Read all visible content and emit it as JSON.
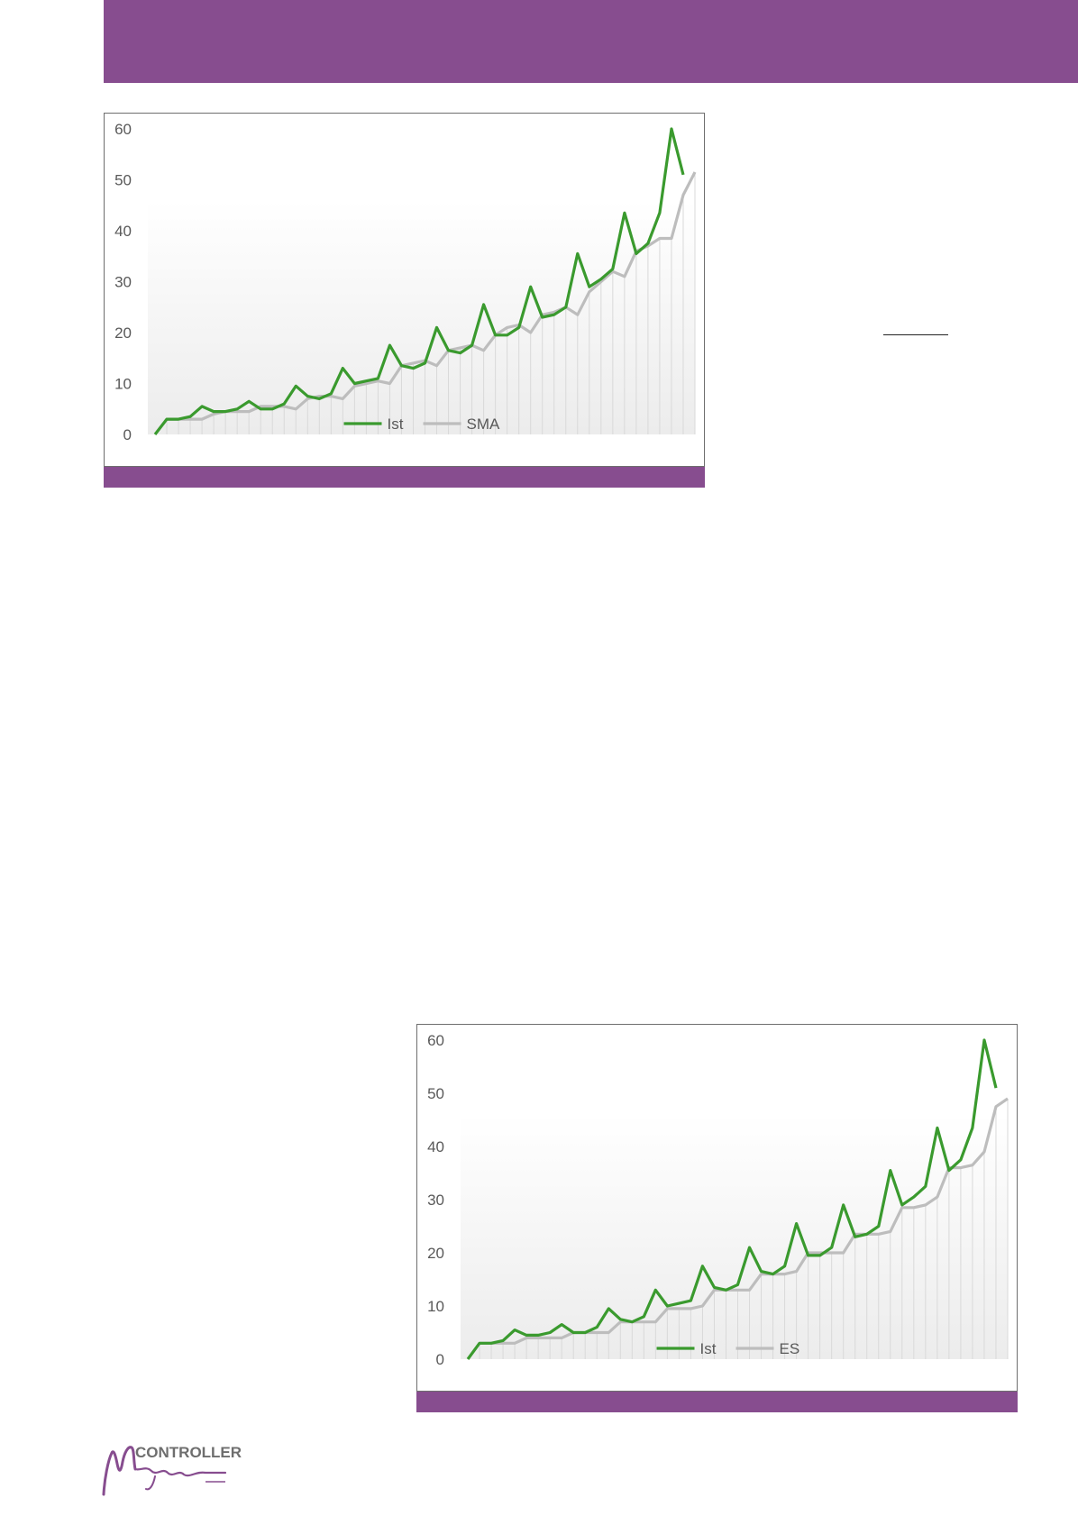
{
  "colors": {
    "header": "#874d8f",
    "ist": "#3a9a2e",
    "average": "#bdbdbd",
    "gridline": "#d9d9d9",
    "tick_text": "#595959"
  },
  "chart_data": [
    {
      "type": "line",
      "ylim": [
        0,
        60
      ],
      "yticks": [
        "0",
        "10",
        "20",
        "30",
        "40",
        "50",
        "60"
      ],
      "legend_position": "bottom-center",
      "series": [
        {
          "name": "Ist",
          "values": [
            0,
            3,
            3,
            3.5,
            5.5,
            4.5,
            4.5,
            5,
            6.5,
            5,
            5,
            6,
            9.5,
            7.5,
            7,
            8,
            13,
            10,
            10.5,
            11,
            17.5,
            13.5,
            13,
            14,
            21,
            16.5,
            16,
            17.5,
            25.5,
            19.5,
            19.5,
            21,
            29,
            23,
            23.5,
            25,
            35.5,
            29,
            30.5,
            32.5,
            43.5,
            35.5,
            37.5,
            43.5,
            60,
            51
          ]
        },
        {
          "name": "SMA",
          "values": [
            null,
            3,
            3,
            3,
            3,
            4,
            4.5,
            4.5,
            4.5,
            5.5,
            5.5,
            5.5,
            5,
            7,
            7.5,
            7.5,
            7,
            9.5,
            10,
            10.5,
            10,
            13.5,
            14,
            14.5,
            13.5,
            16.5,
            17,
            17.5,
            16.5,
            19.5,
            21,
            21.5,
            20,
            23.5,
            24,
            25,
            23.5,
            28,
            30,
            32,
            31,
            36,
            37,
            38.5,
            38.5,
            47,
            51.5
          ]
        }
      ]
    },
    {
      "type": "line",
      "ylim": [
        0,
        60
      ],
      "yticks": [
        "0",
        "10",
        "20",
        "30",
        "40",
        "50",
        "60"
      ],
      "legend_position": "bottom-center",
      "series": [
        {
          "name": "Ist",
          "values": [
            0,
            3,
            3,
            3.5,
            5.5,
            4.5,
            4.5,
            5,
            6.5,
            5,
            5,
            6,
            9.5,
            7.5,
            7,
            8,
            13,
            10,
            10.5,
            11,
            17.5,
            13.5,
            13,
            14,
            21,
            16.5,
            16,
            17.5,
            25.5,
            19.5,
            19.5,
            21,
            29,
            23,
            23.5,
            25,
            35.5,
            29,
            30.5,
            32.5,
            43.5,
            35.5,
            37.5,
            43.5,
            60,
            51
          ]
        },
        {
          "name": "ES",
          "values": [
            null,
            3,
            3,
            3,
            3,
            4,
            4,
            4,
            4,
            5,
            5,
            5,
            5,
            7,
            7,
            7,
            7,
            9.5,
            9.5,
            9.5,
            10,
            13,
            13,
            13,
            13,
            16,
            16,
            16,
            16.5,
            20,
            20,
            20,
            20,
            23.5,
            23.5,
            23.5,
            24,
            28.5,
            28.5,
            29,
            30.5,
            36,
            36,
            36.5,
            39,
            47.5,
            49
          ]
        }
      ]
    }
  ]
}
